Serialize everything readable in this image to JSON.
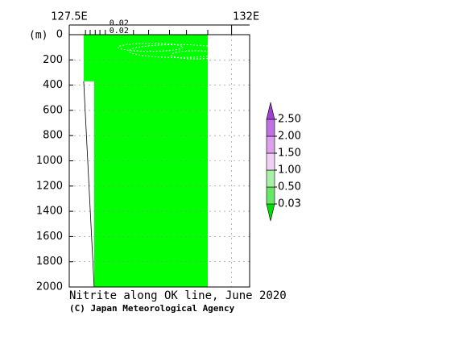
{
  "chart_data": {
    "type": "section",
    "title": "Nitrite along OK line, June 2020",
    "credit": "(C) Japan Meteorological Agency",
    "ylabel": "(m)",
    "xlim": [
      127.5,
      132.5
    ],
    "xticks": [
      {
        "value": 127.5,
        "label": "127.5E"
      },
      {
        "value": 132,
        "label": "132E"
      }
    ],
    "ylim": [
      0,
      2000
    ],
    "yticks": [
      0,
      200,
      400,
      600,
      800,
      1000,
      1200,
      1400,
      1600,
      1800,
      2000
    ],
    "grid": true,
    "stations": [
      127.95,
      128.08,
      128.22,
      128.35,
      128.5,
      128.88,
      129.28,
      129.7,
      130.28,
      130.75,
      131.34
    ],
    "filled_area": {
      "color": "#00ff00",
      "lon": [
        127.9,
        131.34,
        131.34,
        128.19,
        128.19,
        127.9
      ],
      "depth": [
        0,
        0,
        2000,
        2000,
        370,
        370
      ]
    },
    "bottom": {
      "lon": [
        127.9,
        128.19
      ],
      "depth": [
        370,
        2000
      ]
    },
    "contour_labels": [
      {
        "value": 0.02,
        "label": "0.02",
        "lon": 128.88,
        "depth": 100
      },
      {
        "value": 0.02,
        "label": "0.02",
        "lon": 128.88,
        "depth": 160
      }
    ],
    "colorbar": {
      "levels": [
        {
          "value": 0.03,
          "label": "0.03"
        },
        {
          "value": 0.5,
          "label": "0.50"
        },
        {
          "value": 1,
          "label": "1.00"
        },
        {
          "value": 1.5,
          "label": "1.50"
        },
        {
          "value": 2,
          "label": "2.00"
        },
        {
          "value": 2.5,
          "label": "2.50"
        }
      ],
      "colors": [
        "#00e000",
        "#66e866",
        "#a8f0a8",
        "#f0d0f4",
        "#dca0ec",
        "#c070e0",
        "#a040d0"
      ]
    }
  }
}
